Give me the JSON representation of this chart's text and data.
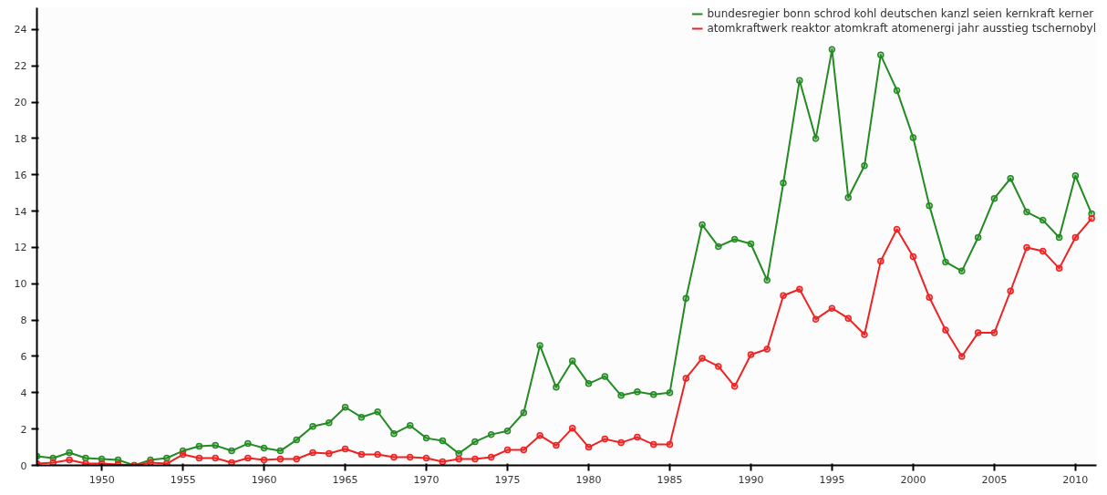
{
  "chart_data": {
    "type": "line",
    "x": [
      1946,
      1947,
      1948,
      1949,
      1950,
      1951,
      1952,
      1953,
      1954,
      1955,
      1956,
      1957,
      1958,
      1959,
      1960,
      1961,
      1962,
      1963,
      1964,
      1965,
      1966,
      1967,
      1968,
      1969,
      1970,
      1971,
      1972,
      1973,
      1974,
      1975,
      1976,
      1977,
      1978,
      1979,
      1980,
      1981,
      1982,
      1983,
      1984,
      1985,
      1986,
      1987,
      1988,
      1989,
      1990,
      1991,
      1992,
      1993,
      1994,
      1995,
      1996,
      1997,
      1998,
      1999,
      2000,
      2001,
      2002,
      2003,
      2004,
      2005,
      2006,
      2007,
      2008,
      2009,
      2010,
      2011
    ],
    "series": [
      {
        "name": "bundesregier bonn schrod kohl deutschen kanzl seien kernkraft kerner",
        "color": "#228b22",
        "values": [
          0.5,
          0.4,
          0.7,
          0.4,
          0.35,
          0.3,
          0.0,
          0.3,
          0.4,
          0.8,
          1.05,
          1.1,
          0.8,
          1.2,
          0.95,
          0.8,
          1.4,
          2.15,
          2.35,
          3.2,
          2.65,
          2.95,
          1.75,
          2.2,
          1.5,
          1.35,
          0.65,
          1.3,
          1.7,
          1.9,
          2.9,
          6.6,
          4.3,
          5.75,
          4.5,
          4.9,
          3.85,
          4.05,
          3.9,
          4.0,
          9.2,
          13.25,
          12.05,
          12.45,
          12.2,
          10.2,
          15.55,
          21.2,
          18.0,
          22.9,
          14.75,
          16.5,
          22.6,
          20.65,
          18.05,
          14.3,
          11.2,
          10.7,
          12.55,
          14.7,
          15.8,
          13.95,
          13.5,
          12.55,
          15.95,
          13.85
        ]
      },
      {
        "name": "atomkraftwerk reaktor atomkraft atomenergi jahr ausstieg tschernobyl",
        "color": "#ee2222",
        "values": [
          0.1,
          0.15,
          0.3,
          0.1,
          0.1,
          0.05,
          0.0,
          0.15,
          0.1,
          0.6,
          0.4,
          0.4,
          0.15,
          0.4,
          0.3,
          0.35,
          0.35,
          0.7,
          0.65,
          0.9,
          0.6,
          0.6,
          0.45,
          0.45,
          0.4,
          0.2,
          0.35,
          0.35,
          0.45,
          0.85,
          0.85,
          1.65,
          1.1,
          2.05,
          1.0,
          1.45,
          1.25,
          1.55,
          1.15,
          1.15,
          4.8,
          5.9,
          5.45,
          4.35,
          6.1,
          6.4,
          9.35,
          9.7,
          8.05,
          8.65,
          8.1,
          7.2,
          11.25,
          13.0,
          11.5,
          9.25,
          7.45,
          6.0,
          7.3,
          7.3,
          9.6,
          12.0,
          11.8,
          10.85,
          12.55,
          13.6
        ]
      }
    ],
    "xlim": [
      1946,
      2011.3
    ],
    "xticks": [
      1950,
      1955,
      1960,
      1965,
      1970,
      1975,
      1980,
      1985,
      1990,
      1995,
      2000,
      2005,
      2010
    ],
    "ylim": [
      0,
      25.2
    ],
    "yticks": [
      0,
      2,
      4,
      6,
      8,
      10,
      12,
      14,
      16,
      18,
      20,
      22,
      24
    ],
    "grid": false,
    "legend": "top right",
    "marker": "circle",
    "line_style": "solid"
  }
}
